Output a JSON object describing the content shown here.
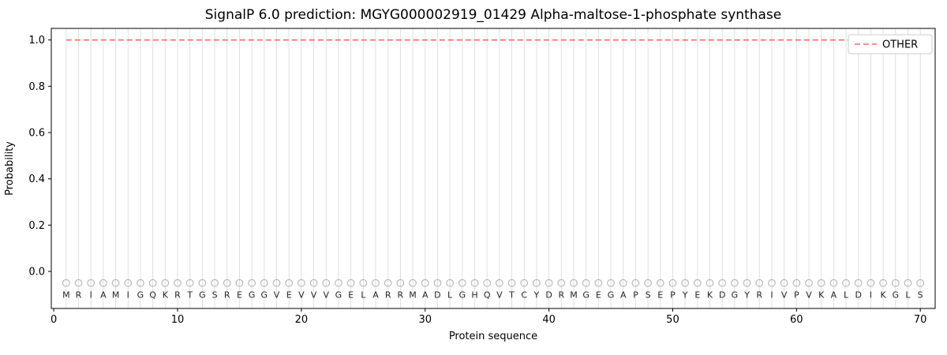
{
  "chart_data": {
    "type": "line",
    "title": "SignalP 6.0 prediction: MGYG000002919_01429 Alpha-maltose-1-phosphate synthase",
    "xlabel": "Protein sequence",
    "ylabel": "Probability",
    "xlim": [
      -0.2,
      71.2
    ],
    "ylim": [
      -0.16,
      1.05
    ],
    "xticks": [
      0,
      10,
      20,
      30,
      40,
      50,
      60,
      70
    ],
    "yticks": [
      0.0,
      0.2,
      0.4,
      0.6,
      0.8,
      1.0
    ],
    "grid": "vertical-per-residue",
    "sequence": "MRIAMIGQKRTGSREGGVEVVVGELARRMADLGHQVTCYDRMGEGAPSEPYEKDGYRIVPVKALDIKGLS",
    "series": [
      {
        "name": "OTHER",
        "value": 1.0,
        "x_start": 1,
        "x_end": 70.5,
        "style": "dashed",
        "color": "#ff6666"
      }
    ],
    "markers": {
      "shape": "open-circle",
      "y": -0.05,
      "color": "#b5b5b5"
    },
    "letters_y": -0.1,
    "legend": {
      "position": "upper right",
      "entries": [
        {
          "label": "OTHER",
          "color": "#ff6666",
          "linestyle": "dashed"
        }
      ]
    },
    "colors": {
      "other_line": "#ff6666",
      "grid": "#dcdcdc",
      "marker": "#b5b5b5",
      "spine": "#000000",
      "legend_border": "#cccccc",
      "background": "#ffffff"
    }
  }
}
